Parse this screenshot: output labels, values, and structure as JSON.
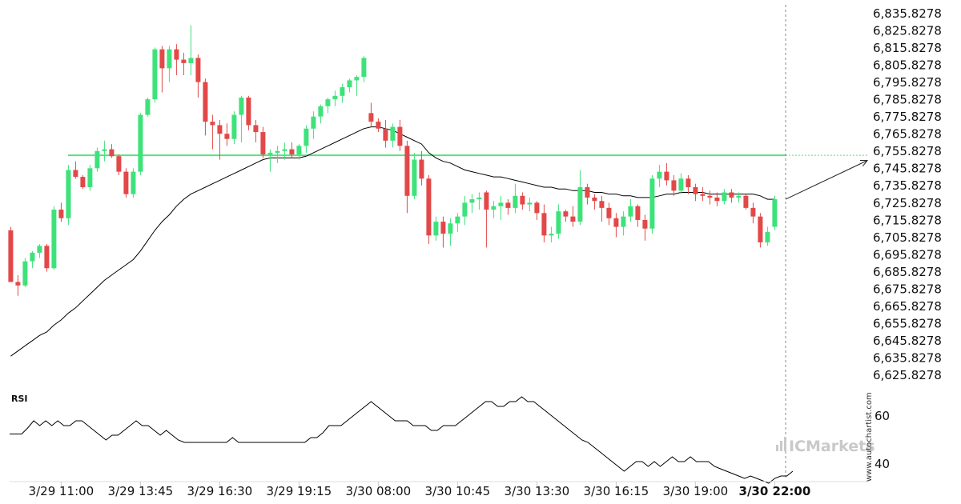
{
  "chart_data": {
    "type": "candlestick",
    "y_axis": {
      "min": 6620.8278,
      "max": 6840.8278,
      "ticks": [
        "6,835.8278",
        "6,825.8278",
        "6,815.8278",
        "6,805.8278",
        "6,795.8278",
        "6,785.8278",
        "6,775.8278",
        "6,765.8278",
        "6,755.8278",
        "6,745.8278",
        "6,735.8278",
        "6,725.8278",
        "6,715.8278",
        "6,705.8278",
        "6,695.8278",
        "6,685.8278",
        "6,675.8278",
        "6,665.8278",
        "6,655.8278",
        "6,645.8278",
        "6,635.8278",
        "6,625.8278"
      ],
      "tick_values": [
        6835.8278,
        6825.8278,
        6815.8278,
        6805.8278,
        6795.8278,
        6785.8278,
        6775.8278,
        6765.8278,
        6755.8278,
        6745.8278,
        6735.8278,
        6725.8278,
        6715.8278,
        6705.8278,
        6695.8278,
        6685.8278,
        6675.8278,
        6665.8278,
        6655.8278,
        6645.8278,
        6635.8278,
        6625.8278
      ]
    },
    "x_axis": {
      "labels": [
        {
          "text": "3/29 11:00",
          "bar": 7,
          "bold": false
        },
        {
          "text": "3/29 13:45",
          "bar": 18,
          "bold": false
        },
        {
          "text": "3/29 16:30",
          "bar": 29,
          "bold": false
        },
        {
          "text": "3/29 19:15",
          "bar": 40,
          "bold": false
        },
        {
          "text": "3/30 08:00",
          "bar": 51,
          "bold": false
        },
        {
          "text": "3/30 10:45",
          "bar": 62,
          "bold": false
        },
        {
          "text": "3/30 13:30",
          "bar": 73,
          "bold": false
        },
        {
          "text": "3/30 16:15",
          "bar": 84,
          "bold": false
        },
        {
          "text": "3/30 19:00",
          "bar": 95,
          "bold": false
        },
        {
          "text": "3/30 22:00",
          "bar": 106,
          "bold": true
        }
      ]
    },
    "candles": [
      [
        6710,
        6712,
        6680,
        6680
      ],
      [
        6680,
        6684,
        6672,
        6678
      ],
      [
        6678,
        6694,
        6677,
        6692
      ],
      [
        6692,
        6698,
        6688,
        6697
      ],
      [
        6697,
        6702,
        6694,
        6701
      ],
      [
        6701,
        6702,
        6686,
        6688
      ],
      [
        6688,
        6724,
        6687,
        6722
      ],
      [
        6722,
        6726,
        6715,
        6717
      ],
      [
        6717,
        6748,
        6713,
        6745
      ],
      [
        6745,
        6750,
        6740,
        6741
      ],
      [
        6741,
        6742,
        6734,
        6735
      ],
      [
        6735,
        6748,
        6733,
        6746
      ],
      [
        6746,
        6758,
        6744,
        6756
      ],
      [
        6756,
        6762,
        6750,
        6757
      ],
      [
        6757,
        6760,
        6752,
        6753
      ],
      [
        6753,
        6754,
        6742,
        6744
      ],
      [
        6744,
        6746,
        6729,
        6731
      ],
      [
        6731,
        6746,
        6729,
        6744
      ],
      [
        6744,
        6778,
        6742,
        6777
      ],
      [
        6777,
        6787,
        6776,
        6786
      ],
      [
        6786,
        6816,
        6784,
        6815
      ],
      [
        6815,
        6817,
        6790,
        6804
      ],
      [
        6804,
        6817,
        6796,
        6815
      ],
      [
        6815,
        6818,
        6800,
        6809
      ],
      [
        6809,
        6813,
        6800,
        6807
      ],
      [
        6807,
        6829,
        6800,
        6810
      ],
      [
        6810,
        6812,
        6787,
        6796
      ],
      [
        6796,
        6798,
        6765,
        6773
      ],
      [
        6773,
        6777,
        6757,
        6771
      ],
      [
        6771,
        6774,
        6751,
        6766
      ],
      [
        6766,
        6772,
        6759,
        6763
      ],
      [
        6763,
        6779,
        6760,
        6777
      ],
      [
        6777,
        6788,
        6761,
        6787
      ],
      [
        6787,
        6788,
        6768,
        6771
      ],
      [
        6771,
        6774,
        6761,
        6767
      ],
      [
        6767,
        6770,
        6752,
        6754
      ],
      [
        6754,
        6757,
        6744,
        6755
      ],
      [
        6755,
        6759,
        6749,
        6756
      ],
      [
        6756,
        6761,
        6751,
        6757
      ],
      [
        6757,
        6761,
        6752,
        6754
      ],
      [
        6754,
        6760,
        6751,
        6759
      ],
      [
        6759,
        6771,
        6755,
        6769
      ],
      [
        6769,
        6779,
        6763,
        6776
      ],
      [
        6776,
        6783,
        6772,
        6782
      ],
      [
        6782,
        6787,
        6778,
        6786
      ],
      [
        6786,
        6791,
        6782,
        6788
      ],
      [
        6788,
        6795,
        6784,
        6793
      ],
      [
        6793,
        6798,
        6790,
        6797
      ],
      [
        6797,
        6800,
        6788,
        6799
      ],
      [
        6799,
        6811,
        6796,
        6810
      ],
      [
        6778,
        6784,
        6770,
        6773
      ],
      [
        6773,
        6775,
        6767,
        6769
      ],
      [
        6769,
        6774,
        6758,
        6762
      ],
      [
        6762,
        6772,
        6758,
        6770
      ],
      [
        6770,
        6774,
        6756,
        6759
      ],
      [
        6759,
        6762,
        6720,
        6730
      ],
      [
        6730,
        6755,
        6728,
        6751
      ],
      [
        6751,
        6756,
        6736,
        6740
      ],
      [
        6740,
        6742,
        6702,
        6707
      ],
      [
        6707,
        6718,
        6704,
        6715
      ],
      [
        6715,
        6718,
        6700,
        6708
      ],
      [
        6708,
        6717,
        6701,
        6714
      ],
      [
        6714,
        6720,
        6709,
        6718
      ],
      [
        6718,
        6730,
        6713,
        6726
      ],
      [
        6726,
        6731,
        6720,
        6728
      ],
      [
        6728,
        6732,
        6722,
        6729
      ],
      [
        6732,
        6733,
        6700,
        6722
      ],
      [
        6722,
        6727,
        6717,
        6724
      ],
      [
        6724,
        6730,
        6716,
        6726
      ],
      [
        6726,
        6728,
        6719,
        6723
      ],
      [
        6723,
        6737,
        6720,
        6730
      ],
      [
        6730,
        6732,
        6722,
        6725
      ],
      [
        6725,
        6729,
        6721,
        6726
      ],
      [
        6726,
        6727,
        6716,
        6720
      ],
      [
        6720,
        6725,
        6703,
        6707
      ],
      [
        6707,
        6712,
        6703,
        6708
      ],
      [
        6708,
        6725,
        6705,
        6721
      ],
      [
        6721,
        6722,
        6715,
        6718
      ],
      [
        6718,
        6724,
        6712,
        6715
      ],
      [
        6715,
        6745,
        6713,
        6735
      ],
      [
        6735,
        6737,
        6725,
        6729
      ],
      [
        6729,
        6731,
        6722,
        6727
      ],
      [
        6727,
        6730,
        6715,
        6723
      ],
      [
        6723,
        6726,
        6713,
        6717
      ],
      [
        6717,
        6720,
        6706,
        6712
      ],
      [
        6712,
        6721,
        6707,
        6718
      ],
      [
        6718,
        6728,
        6715,
        6724
      ],
      [
        6724,
        6725,
        6712,
        6716
      ],
      [
        6716,
        6719,
        6704,
        6711
      ],
      [
        6711,
        6742,
        6708,
        6740
      ],
      [
        6740,
        6748,
        6735,
        6744
      ],
      [
        6744,
        6749,
        6736,
        6739
      ],
      [
        6739,
        6742,
        6730,
        6733
      ],
      [
        6733,
        6743,
        6731,
        6740
      ],
      [
        6740,
        6742,
        6731,
        6735
      ],
      [
        6735,
        6737,
        6727,
        6731
      ],
      [
        6731,
        6735,
        6727,
        6730
      ],
      [
        6730,
        6733,
        6725,
        6729
      ],
      [
        6729,
        6732,
        6724,
        6727
      ],
      [
        6727,
        6734,
        6725,
        6732
      ],
      [
        6732,
        6734,
        6726,
        6729
      ],
      [
        6729,
        6732,
        6726,
        6730
      ],
      [
        6730,
        6731,
        6722,
        6723
      ],
      [
        6723,
        6726,
        6714,
        6718
      ],
      [
        6718,
        6720,
        6700,
        6703
      ],
      [
        6703,
        6712,
        6701,
        6709
      ],
      [
        6712,
        6730,
        6710,
        6728
      ]
    ],
    "moving_average": [
      6637,
      6640,
      6643,
      6646,
      6649,
      6651,
      6655,
      6658,
      6662,
      6665,
      6669,
      6673,
      6677,
      6681,
      6684,
      6687,
      6690,
      6693,
      6698,
      6704,
      6710,
      6715,
      6719,
      6724,
      6728,
      6731,
      6733,
      6735,
      6737,
      6739,
      6741,
      6743,
      6745,
      6747,
      6749,
      6751,
      6752,
      6752,
      6752,
      6752,
      6752,
      6753,
      6755,
      6757,
      6759,
      6761,
      6763,
      6765,
      6767,
      6769,
      6770,
      6770,
      6769,
      6768,
      6766,
      6764,
      6762,
      6760,
      6755,
      6752,
      6750,
      6749,
      6747,
      6745,
      6744,
      6743,
      6742,
      6741,
      6741,
      6740,
      6739,
      6738,
      6737,
      6736,
      6735,
      6735,
      6734,
      6734,
      6733,
      6733,
      6733,
      6732,
      6732,
      6731,
      6731,
      6730,
      6730,
      6729,
      6729,
      6729,
      6730,
      6731,
      6731,
      6732,
      6732,
      6732,
      6732,
      6731,
      6731,
      6731,
      6731,
      6731,
      6731,
      6731,
      6730,
      6728,
      6728
    ],
    "levels": [
      {
        "value": 6753.5
      }
    ],
    "projection": {
      "from_value": 6728,
      "to_value": 6750.5
    },
    "rsi": {
      "title": "RSI",
      "min": 30,
      "max": 70,
      "ticks": [
        "60",
        "40"
      ],
      "tick_values": [
        60,
        40
      ],
      "values": [
        52.5,
        52.5,
        52.5,
        55,
        58,
        56,
        58,
        56,
        58,
        56,
        56,
        58,
        58,
        56,
        54,
        52,
        50,
        52,
        52,
        54,
        56,
        58,
        56,
        56,
        54,
        52,
        54,
        52,
        50,
        49,
        49,
        49,
        49,
        49,
        49,
        49,
        49,
        51,
        49,
        49,
        49,
        49,
        49,
        49,
        49,
        49,
        49,
        49,
        49,
        49,
        51,
        51,
        53,
        56,
        56,
        56,
        58,
        60,
        62,
        64,
        66,
        64,
        62,
        60,
        58,
        58,
        58,
        56,
        56,
        56,
        54,
        54,
        56,
        56,
        56,
        58,
        60,
        62,
        64,
        66,
        66,
        64,
        64,
        66,
        66,
        68,
        66,
        66,
        64,
        62,
        60,
        58,
        56,
        54,
        52,
        50,
        49,
        47,
        45,
        43,
        41,
        39,
        37,
        39,
        41,
        41,
        39,
        41,
        39,
        41,
        43,
        41,
        41,
        43,
        41,
        41,
        41,
        39,
        38,
        37,
        36,
        35,
        34,
        35,
        34,
        33,
        32,
        34,
        35,
        35,
        37
      ]
    },
    "grid": false,
    "legend": "none"
  },
  "branding": {
    "name": "ICMarkets",
    "watermark": "www.autochartist.com",
    "colors": {
      "bullish": "#3ee27a",
      "bearish": "#e34848",
      "level": "#56e27f",
      "average": "#000000",
      "brand": "#c9c9c9"
    }
  }
}
